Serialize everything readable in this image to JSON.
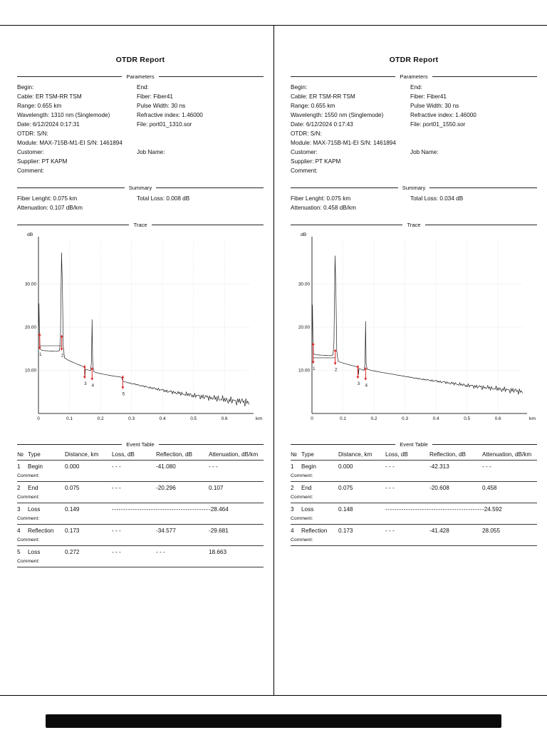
{
  "pages": [
    {
      "title": "OTDR Report",
      "section_labels": {
        "parameters": "Parameters",
        "summary": "Summary",
        "trace": "Trace",
        "event_table": "Event Table"
      },
      "parameters": [
        {
          "l": "Begin:",
          "r": "End:"
        },
        {
          "l": "Cable: ER TSM-RR TSM",
          "r": "Fiber: Fiber41"
        },
        {
          "l": "Range: 0.655 km",
          "r": "Pulse Width: 30 ns"
        },
        {
          "l": "Wavelength: 1310 nm (Singlemode)",
          "r": "Refractive index: 1.46000"
        },
        {
          "l": "Date: 6/12/2024 0:17:31",
          "r": "File: port01_1310.sor"
        },
        {
          "l": "OTDR:  S/N:",
          "r": ""
        },
        {
          "l": "Module: MAX-715B-M1-EI  S/N: 1461894",
          "r": ""
        },
        {
          "l": "Customer:",
          "r": "Job Name:"
        },
        {
          "l": "Supplier: PT KAPM",
          "r": ""
        },
        {
          "l": "Comment:",
          "r": ""
        }
      ],
      "summary": [
        {
          "l": "Fiber Lenght: 0.075 km",
          "r": "Total Loss: 0.008 dB"
        },
        {
          "l": "Attenuation: 0.107 dB/km",
          "r": ""
        }
      ],
      "event_table": {
        "headers": [
          "№",
          "Type",
          "Distance, km",
          "Loss, dB",
          "Reflection, dB",
          "Attenuation, dB/km"
        ],
        "comment_label": "Comment:",
        "rows": [
          {
            "no": "1",
            "type": "Begin",
            "distance": "0.000",
            "loss": "- - -",
            "reflection": "-41.080",
            "attenuation": "- - -"
          },
          {
            "no": "2",
            "type": "End",
            "distance": "0.075",
            "loss": "- - -",
            "reflection": "-20.296",
            "attenuation": "0.107"
          },
          {
            "no": "3",
            "type": "Loss",
            "distance": "0.149",
            "dash_fill": true,
            "attenuation": "-28.464"
          },
          {
            "no": "4",
            "type": "Reflection",
            "distance": "0.173",
            "loss": "- - -",
            "reflection": "-34.577",
            "attenuation": "-29.681"
          },
          {
            "no": "5",
            "type": "Loss",
            "distance": "0.272",
            "loss": "- - -",
            "reflection": "- - -",
            "attenuation": "18.663"
          }
        ]
      }
    },
    {
      "title": "OTDR Report",
      "section_labels": {
        "parameters": "Parameters",
        "summary": "Summary",
        "trace": "Trace",
        "event_table": "Event Table"
      },
      "parameters": [
        {
          "l": "Begin:",
          "r": "End:"
        },
        {
          "l": "Cable: ER TSM-RR TSM",
          "r": "Fiber: Fiber41"
        },
        {
          "l": "Range: 0.655 km",
          "r": "Pulse Width: 30 ns"
        },
        {
          "l": "Wavelength: 1550 nm (Singlemode)",
          "r": "Refractive index: 1.46000"
        },
        {
          "l": "Date: 6/12/2024 0:17:43",
          "r": "File: port01_1550.sor"
        },
        {
          "l": "OTDR:  S/N:",
          "r": ""
        },
        {
          "l": "Module: MAX-715B-M1-EI  S/N: 1461894",
          "r": ""
        },
        {
          "l": "Customer:",
          "r": "Job Name:"
        },
        {
          "l": "Supplier: PT KAPM",
          "r": ""
        },
        {
          "l": "Comment:",
          "r": ""
        }
      ],
      "summary": [
        {
          "l": "Fiber Lenght: 0.075 km",
          "r": "Total Loss: 0.034 dB"
        },
        {
          "l": "Attenuation: 0.458 dB/km",
          "r": ""
        }
      ],
      "event_table": {
        "headers": [
          "№",
          "Type",
          "Distance, km",
          "Loss, dB",
          "Reflection, dB",
          "Attenuation, dB/km"
        ],
        "comment_label": "Comment:",
        "rows": [
          {
            "no": "1",
            "type": "Begin",
            "distance": "0.000",
            "loss": "- - -",
            "reflection": "-42.313",
            "attenuation": "- - -"
          },
          {
            "no": "2",
            "type": "End",
            "distance": "0.075",
            "loss": "- - -",
            "reflection": "-20.608",
            "attenuation": "0.458"
          },
          {
            "no": "3",
            "type": "Loss",
            "distance": "0.148",
            "dash_fill": true,
            "attenuation": "-24.592"
          },
          {
            "no": "4",
            "type": "Reflection",
            "distance": "0.173",
            "loss": "- - -",
            "reflection": "-41.428",
            "attenuation": "28.055"
          }
        ]
      }
    }
  ],
  "chart_data": [
    {
      "type": "line",
      "title": "OTDR trace 1310 nm",
      "xlabel": "km",
      "ylabel": "dB",
      "xlim": [
        0,
        0.68
      ],
      "ylim": [
        0,
        40
      ],
      "x_ticks": [
        0,
        0.1,
        0.2,
        0.3,
        0.4,
        0.5,
        0.6
      ],
      "y_ticks": [
        10,
        20,
        30
      ],
      "y_tick_labels": [
        "10.00",
        "20.00",
        "30.00"
      ],
      "grid": "dotted",
      "legend": "none",
      "trace_color": "#222222",
      "marker_color": "#dd2222",
      "keypoints": [
        [
          0,
          16
        ],
        [
          0.0015,
          25.5
        ],
        [
          0.003,
          19.5
        ],
        [
          0.005,
          15
        ],
        [
          0.012,
          14.6
        ],
        [
          0.06,
          14.4
        ],
        [
          0.068,
          14.6
        ],
        [
          0.071,
          17.5
        ],
        [
          0.0745,
          37.3
        ],
        [
          0.077,
          30
        ],
        [
          0.08,
          15.5
        ],
        [
          0.084,
          12.9
        ],
        [
          0.095,
          12.4
        ],
        [
          0.11,
          11.9
        ],
        [
          0.13,
          11.3
        ],
        [
          0.147,
          10.8
        ],
        [
          0.1487,
          10.6
        ],
        [
          0.15,
          8.7
        ],
        [
          0.1515,
          10.3
        ],
        [
          0.16,
          10.1
        ],
        [
          0.168,
          9.9
        ],
        [
          0.1712,
          12
        ],
        [
          0.173,
          21.8
        ],
        [
          0.1748,
          12
        ],
        [
          0.178,
          9.7
        ],
        [
          0.19,
          9.4
        ],
        [
          0.21,
          9.1
        ],
        [
          0.24,
          8.7
        ],
        [
          0.268,
          8.4
        ],
        [
          0.2725,
          7.5
        ],
        [
          0.285,
          7.2
        ],
        [
          0.31,
          6.8
        ],
        [
          0.34,
          6.3
        ],
        [
          0.38,
          5.7
        ],
        [
          0.42,
          5.1
        ],
        [
          0.46,
          4.6
        ],
        [
          0.5,
          4.2
        ],
        [
          0.54,
          3.8
        ],
        [
          0.58,
          3.4
        ],
        [
          0.62,
          3.0
        ],
        [
          0.66,
          2.8
        ],
        [
          0.68,
          2.6
        ]
      ],
      "noise": {
        "start": 0.26,
        "slope": 3.0,
        "max": 1.5
      },
      "cursor_line": {
        "x1": 0.004,
        "x2": 0.075,
        "y": 15.7
      },
      "markers": [
        {
          "x": 0.004,
          "y1": 18.6,
          "y2": 14.9,
          "label": "1"
        },
        {
          "x": 0.075,
          "y1": 18.2,
          "y2": 14.6,
          "label": "2"
        },
        {
          "x": 0.149,
          "y1": 11.2,
          "y2": 8.1,
          "label": "3"
        },
        {
          "x": 0.173,
          "y1": 10.7,
          "y2": 7.7,
          "label": "4"
        },
        {
          "x": 0.272,
          "y1": 8.8,
          "y2": 5.7,
          "label": "5"
        }
      ]
    },
    {
      "type": "line",
      "title": "OTDR trace 1550 nm",
      "xlabel": "km",
      "ylabel": "dB",
      "xlim": [
        0,
        0.68
      ],
      "ylim": [
        0,
        40
      ],
      "x_ticks": [
        0,
        0.1,
        0.2,
        0.3,
        0.4,
        0.5,
        0.6
      ],
      "y_ticks": [
        10,
        20,
        30
      ],
      "y_tick_labels": [
        "10.00",
        "20.00",
        "30.00"
      ],
      "grid": "dotted",
      "legend": "none",
      "trace_color": "#222222",
      "marker_color": "#dd2222",
      "keypoints": [
        [
          0,
          14
        ],
        [
          0.0015,
          25.2
        ],
        [
          0.003,
          18
        ],
        [
          0.005,
          13.8
        ],
        [
          0.012,
          13.6
        ],
        [
          0.06,
          13.4
        ],
        [
          0.068,
          13.6
        ],
        [
          0.071,
          16.5
        ],
        [
          0.0745,
          36.6
        ],
        [
          0.077,
          29
        ],
        [
          0.08,
          14.5
        ],
        [
          0.084,
          12.1
        ],
        [
          0.095,
          11.8
        ],
        [
          0.11,
          11.5
        ],
        [
          0.13,
          11.1
        ],
        [
          0.147,
          10.8
        ],
        [
          0.1487,
          10.6
        ],
        [
          0.15,
          9.0
        ],
        [
          0.1515,
          10.4
        ],
        [
          0.16,
          10.2
        ],
        [
          0.168,
          10.0
        ],
        [
          0.1712,
          11.5
        ],
        [
          0.173,
          21.4
        ],
        [
          0.1748,
          11.5
        ],
        [
          0.178,
          10.3
        ],
        [
          0.19,
          10.0
        ],
        [
          0.22,
          9.6
        ],
        [
          0.26,
          9.1
        ],
        [
          0.3,
          8.6
        ],
        [
          0.35,
          8.0
        ],
        [
          0.4,
          7.5
        ],
        [
          0.45,
          7.0
        ],
        [
          0.5,
          6.5
        ],
        [
          0.55,
          6.1
        ],
        [
          0.6,
          5.7
        ],
        [
          0.64,
          5.4
        ],
        [
          0.68,
          5.1
        ]
      ],
      "noise": {
        "start": 0.26,
        "slope": 2.2,
        "max": 1.1
      },
      "cursor_line": {
        "x1": 0.004,
        "x2": 0.075,
        "y": 12.9
      },
      "markers": [
        {
          "x": 0.004,
          "y1": 16.4,
          "y2": 11.6,
          "label": "1"
        },
        {
          "x": 0.075,
          "y1": 14.9,
          "y2": 11.3,
          "label": "2"
        },
        {
          "x": 0.148,
          "y1": 11.2,
          "y2": 8.1,
          "label": "3"
        },
        {
          "x": 0.173,
          "y1": 10.7,
          "y2": 7.7,
          "label": "4"
        }
      ]
    }
  ]
}
